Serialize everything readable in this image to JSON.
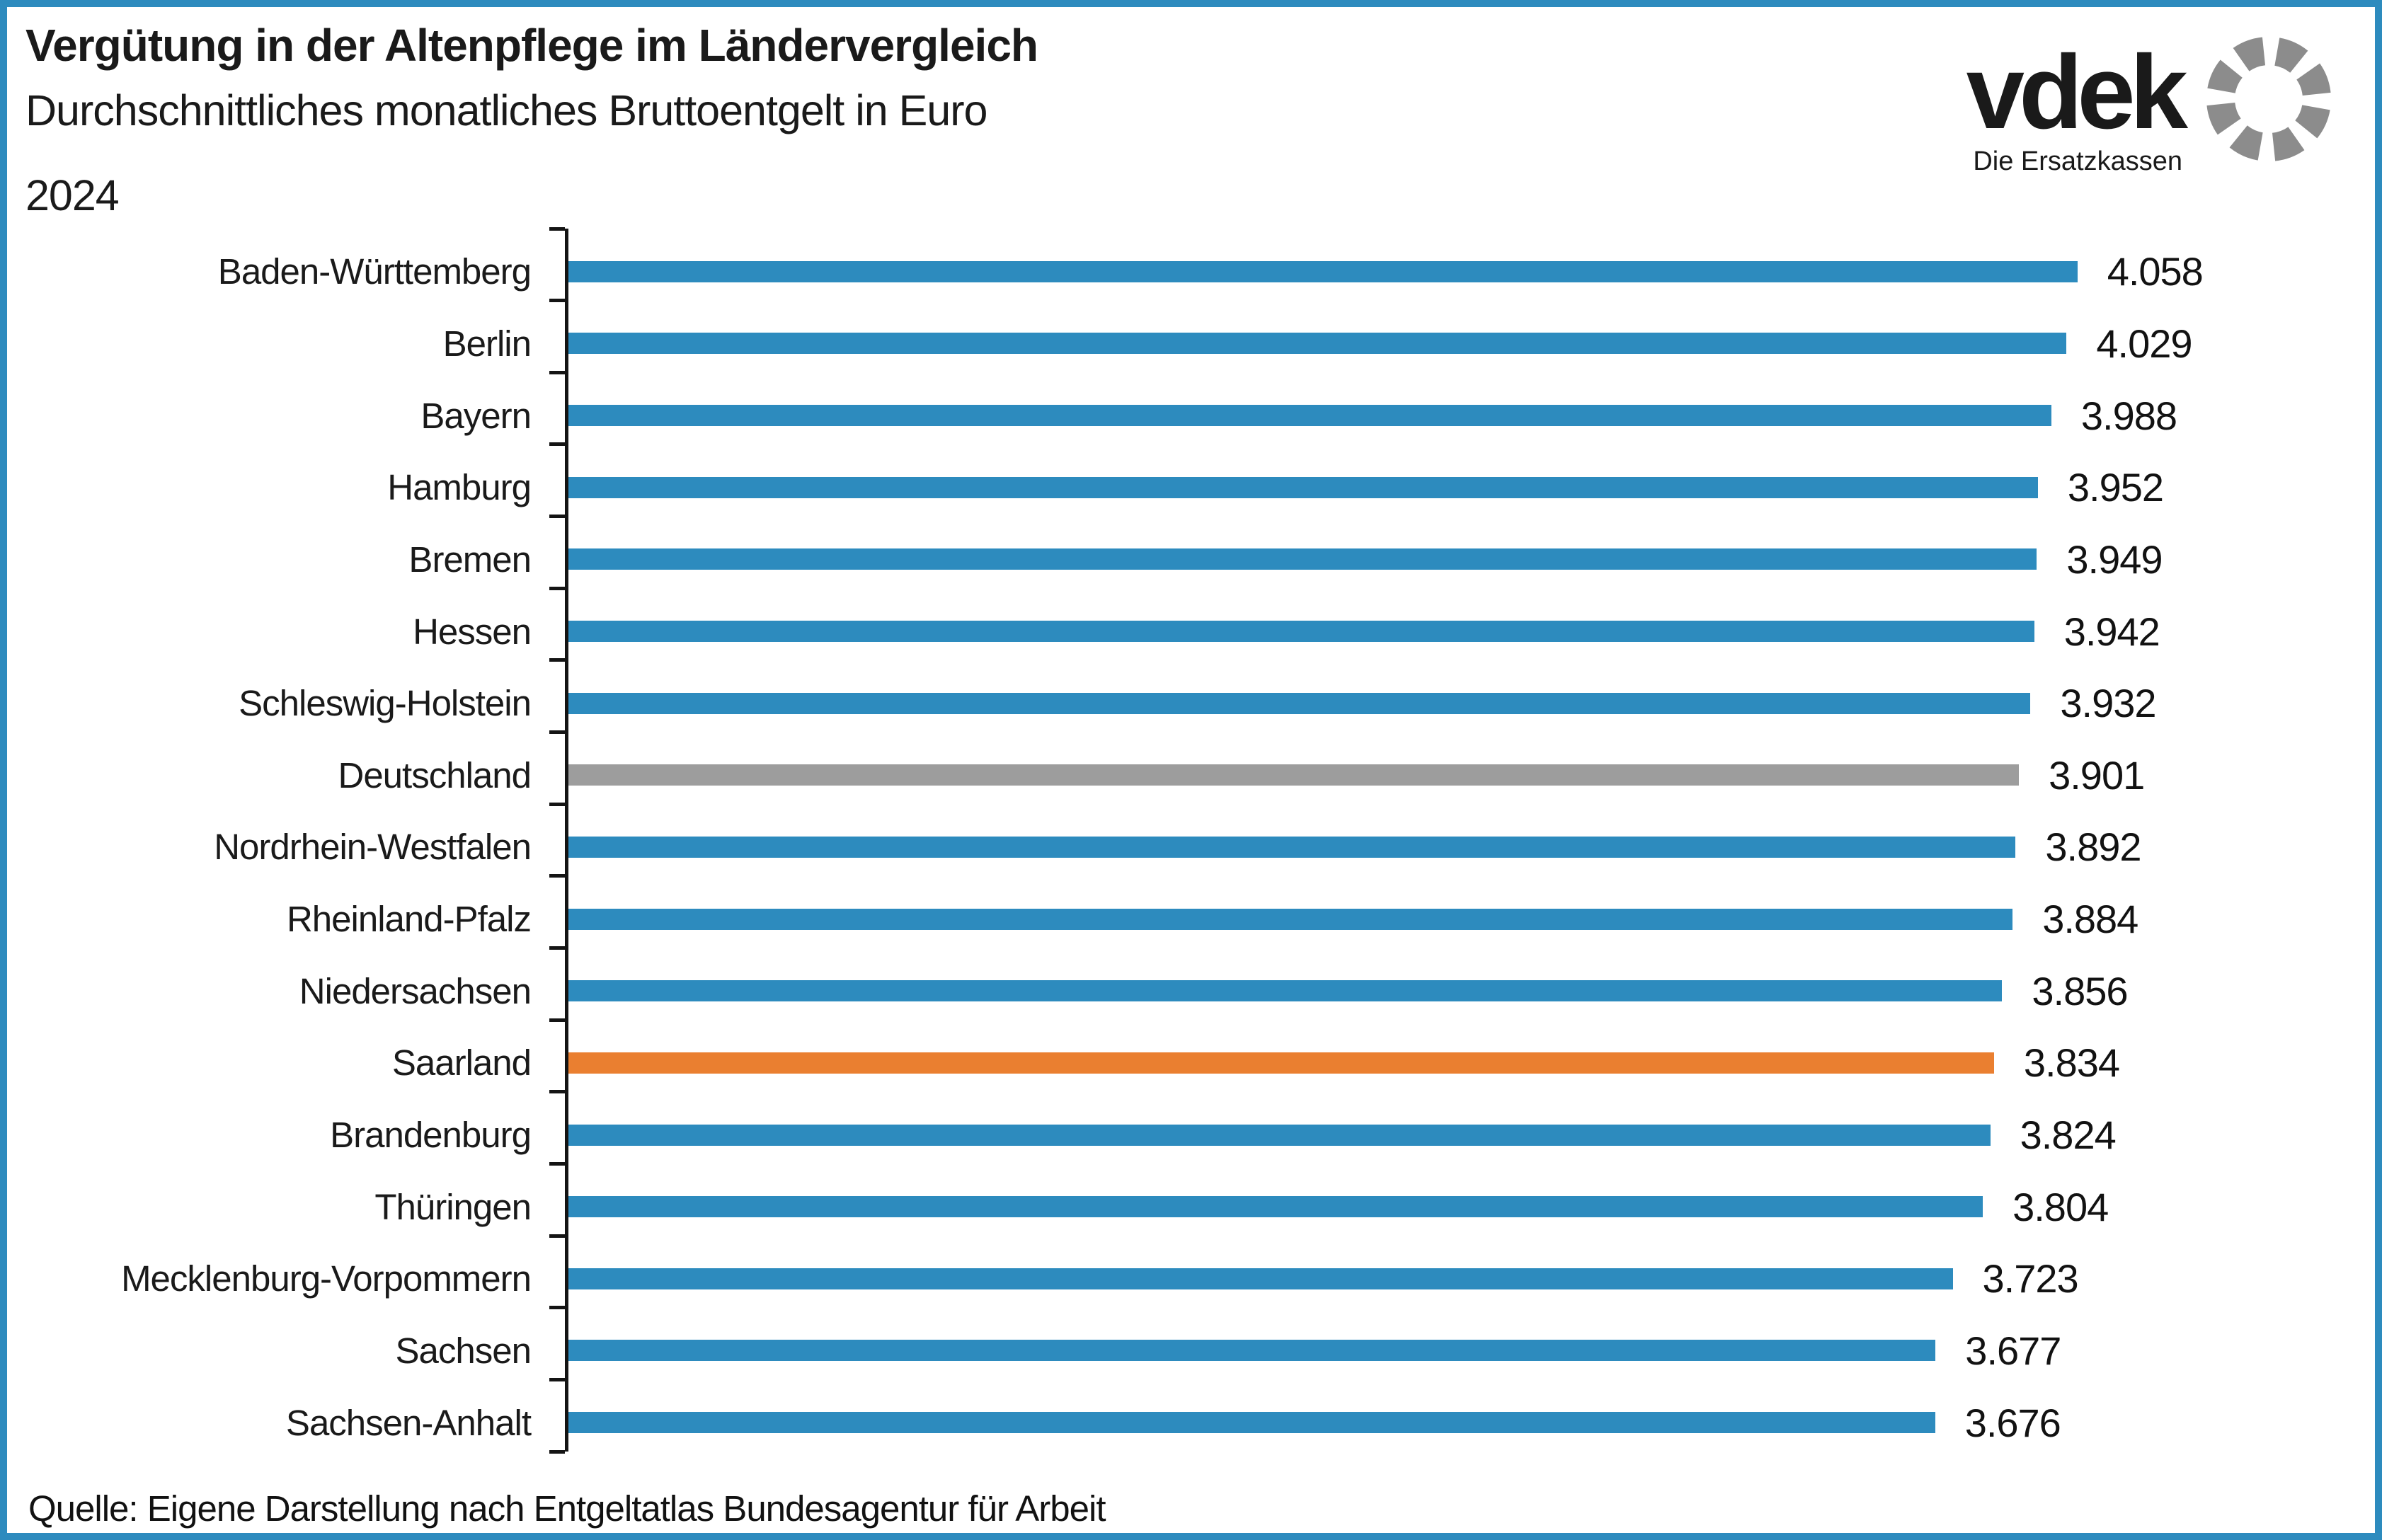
{
  "header": {
    "title": "Vergütung in der Altenpflege im Ländervergleich",
    "subtitle": "Durchschnittliches monatliches Bruttoentgelt in Euro",
    "year": "2024"
  },
  "logo": {
    "name": "vdek",
    "tagline": "Die Ersatzkassen"
  },
  "source": "Quelle: Eigene Darstellung nach Entgeltatlas Bundesagentur für Arbeit",
  "colors": {
    "bar_blue": "#2d8bbe",
    "bar_gray": "#9d9d9d",
    "bar_orange": "#ea7f30",
    "title_blue": "#3488ba",
    "logo_blue": "#1e7db2",
    "logo_gray": "#8c8c8c",
    "border_blue": "#2d8bbe",
    "text_black": "#1a1a1a"
  },
  "chart_data": {
    "type": "bar",
    "orientation": "horizontal",
    "title": "Durchschnittliches monatliches Bruttoentgelt in Euro 2024",
    "xlabel": "",
    "ylabel": "",
    "xlim": [
      0,
      4300
    ],
    "grid": false,
    "x_axis_labels_visible": false,
    "value_labels_position": "end-of-bar",
    "categories": [
      "Baden-Württemberg",
      "Berlin",
      "Bayern",
      "Hamburg",
      "Bremen",
      "Hessen",
      "Schleswig-Holstein",
      "Deutschland",
      "Nordrhein-Westfalen",
      "Rheinland-Pfalz",
      "Niedersachsen",
      "Saarland",
      "Brandenburg",
      "Thüringen",
      "Mecklenburg-Vorpommern",
      "Sachsen",
      "Sachsen-Anhalt"
    ],
    "values": [
      4058,
      4029,
      3988,
      3952,
      3949,
      3942,
      3932,
      3901,
      3892,
      3884,
      3856,
      3834,
      3824,
      3804,
      3723,
      3677,
      3676
    ],
    "bars": [
      {
        "label": "Baden-Württemberg",
        "value": 4058,
        "value_label": "4.058",
        "color": "#2d8bbe"
      },
      {
        "label": "Berlin",
        "value": 4029,
        "value_label": "4.029",
        "color": "#2d8bbe"
      },
      {
        "label": "Bayern",
        "value": 3988,
        "value_label": "3.988",
        "color": "#2d8bbe"
      },
      {
        "label": "Hamburg",
        "value": 3952,
        "value_label": "3.952",
        "color": "#2d8bbe"
      },
      {
        "label": "Bremen",
        "value": 3949,
        "value_label": "3.949",
        "color": "#2d8bbe"
      },
      {
        "label": "Hessen",
        "value": 3942,
        "value_label": "3.942",
        "color": "#2d8bbe"
      },
      {
        "label": "Schleswig-Holstein",
        "value": 3932,
        "value_label": "3.932",
        "color": "#2d8bbe"
      },
      {
        "label": "Deutschland",
        "value": 3901,
        "value_label": "3.901",
        "color": "#9d9d9d"
      },
      {
        "label": "Nordrhein-Westfalen",
        "value": 3892,
        "value_label": "3.892",
        "color": "#2d8bbe"
      },
      {
        "label": "Rheinland-Pfalz",
        "value": 3884,
        "value_label": "3.884",
        "color": "#2d8bbe"
      },
      {
        "label": "Niedersachsen",
        "value": 3856,
        "value_label": "3.856",
        "color": "#2d8bbe"
      },
      {
        "label": "Saarland",
        "value": 3834,
        "value_label": "3.834",
        "color": "#ea7f30"
      },
      {
        "label": "Brandenburg",
        "value": 3824,
        "value_label": "3.824",
        "color": "#2d8bbe"
      },
      {
        "label": "Thüringen",
        "value": 3804,
        "value_label": "3.804",
        "color": "#2d8bbe"
      },
      {
        "label": "Mecklenburg-Vorpommern",
        "value": 3723,
        "value_label": "3.723",
        "color": "#2d8bbe"
      },
      {
        "label": "Sachsen",
        "value": 3677,
        "value_label": "3.677",
        "color": "#2d8bbe"
      },
      {
        "label": "Sachsen-Anhalt",
        "value": 3676,
        "value_label": "3.676",
        "color": "#2d8bbe"
      }
    ]
  }
}
